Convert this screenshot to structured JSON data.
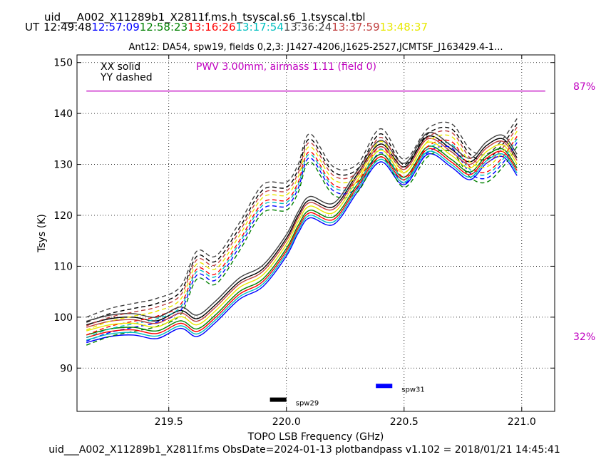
{
  "header": {
    "file_title": "uid___A002_X11289b1_X2811f.ms.h_tsyscal.s6_1.tsyscal.tbl",
    "ut_label": "UT",
    "times": [
      {
        "text": "12:49:48",
        "color": "#000000"
      },
      {
        "text": "12:57:09",
        "color": "#0000ff"
      },
      {
        "text": "12:58:23",
        "color": "#008000"
      },
      {
        "text": "13:16:26",
        "color": "#ff0000"
      },
      {
        "text": "13:17:54",
        "color": "#00bfbf"
      },
      {
        "text": "13:36:24",
        "color": "#404040"
      },
      {
        "text": "13:37:59",
        "color": "#c04040"
      },
      {
        "text": "13:48:37",
        "color": "#e8e800"
      }
    ]
  },
  "footer": {
    "text": "uid___A002_X11289b1_X2811f.ms  ObsDate=2024-01-13   plotbandpass v1.102 = 2018/01/21 14:45:41"
  },
  "chart_data": {
    "type": "line",
    "title": "Ant12: DA54,  spw19,  fields 0,2,3: J1427-4206,J1625-2527,JCMTSF_J163429.4-1...",
    "xlabel": "TOPO LSB Frequency (GHz)",
    "ylabel": "Tsys (K)",
    "xlim": [
      219.11,
      221.14
    ],
    "ylim": [
      81.5,
      151.5
    ],
    "xticks": [
      219.5,
      220.0,
      220.5,
      221.0
    ],
    "xtick_labels": [
      "219.5",
      "220.0",
      "220.5",
      "221.0"
    ],
    "yticks": [
      90,
      100,
      110,
      120,
      130,
      140,
      150
    ],
    "ytick_labels": [
      "90",
      "100",
      "110",
      "120",
      "130",
      "140",
      "150"
    ],
    "grid": true,
    "legend_text": [
      "XX solid",
      "YY dashed"
    ],
    "pwv_text": "PWV 3.00mm, airmass 1.11 (field 0)",
    "pwv_color": "#c000c0",
    "transmission": {
      "color": "#c000c0",
      "labels": [
        "87%",
        "32%"
      ],
      "line_y": 144.4,
      "x_range": [
        219.15,
        221.1
      ]
    },
    "base_x": [
      219.15,
      219.25,
      219.35,
      219.45,
      219.55,
      219.62,
      219.7,
      219.8,
      219.9,
      220.0,
      220.05,
      220.1,
      220.2,
      220.3,
      220.4,
      220.5,
      220.6,
      220.7,
      220.78,
      220.85,
      220.92,
      220.98
    ],
    "xx_base": [
      95.0,
      96.2,
      96.5,
      95.8,
      97.8,
      96.2,
      99.0,
      103.5,
      106.0,
      112.0,
      116.5,
      119.5,
      118.2,
      124.5,
      130.5,
      126.0,
      132.0,
      129.5,
      127.0,
      130.2,
      131.5,
      127.8
    ],
    "yy_base": [
      94.5,
      96.2,
      97.2,
      98.2,
      100.5,
      107.5,
      106.5,
      113.0,
      120.5,
      121.0,
      124.5,
      130.5,
      124.0,
      124.5,
      131.5,
      125.5,
      131.5,
      132.5,
      127.5,
      126.5,
      129.5,
      133.5
    ],
    "series": [
      {
        "name": "12:49:48",
        "color": "#000000",
        "xx_offset": 3.5,
        "yy_offset": 4.5
      },
      {
        "name": "12:57:09",
        "color": "#0000ff",
        "xx_offset": 0.0,
        "yy_offset": 0.8
      },
      {
        "name": "12:58:23",
        "color": "#008000",
        "xx_offset": 1.5,
        "yy_offset": 0.0
      },
      {
        "name": "13:16:26",
        "color": "#ff0000",
        "xx_offset": 1.0,
        "yy_offset": 2.0
      },
      {
        "name": "13:17:54",
        "color": "#00bfbf",
        "xx_offset": 0.5,
        "yy_offset": 1.5
      },
      {
        "name": "13:36:24",
        "color": "#404040",
        "xx_offset": 4.2,
        "yy_offset": 5.5
      },
      {
        "name": "13:37:59",
        "color": "#c04040",
        "xx_offset": 3.0,
        "yy_offset": 3.8
      },
      {
        "name": "13:48:37",
        "color": "#e8e800",
        "xx_offset": 2.3,
        "yy_offset": 3.0
      }
    ],
    "spw_markers": [
      {
        "label": "spw29",
        "x_range": [
          219.93,
          220.0
        ],
        "y": 83.8,
        "color": "#000000"
      },
      {
        "label": "spw31",
        "x_range": [
          220.38,
          220.45
        ],
        "y": 86.5,
        "color": "#0000ff"
      }
    ]
  }
}
